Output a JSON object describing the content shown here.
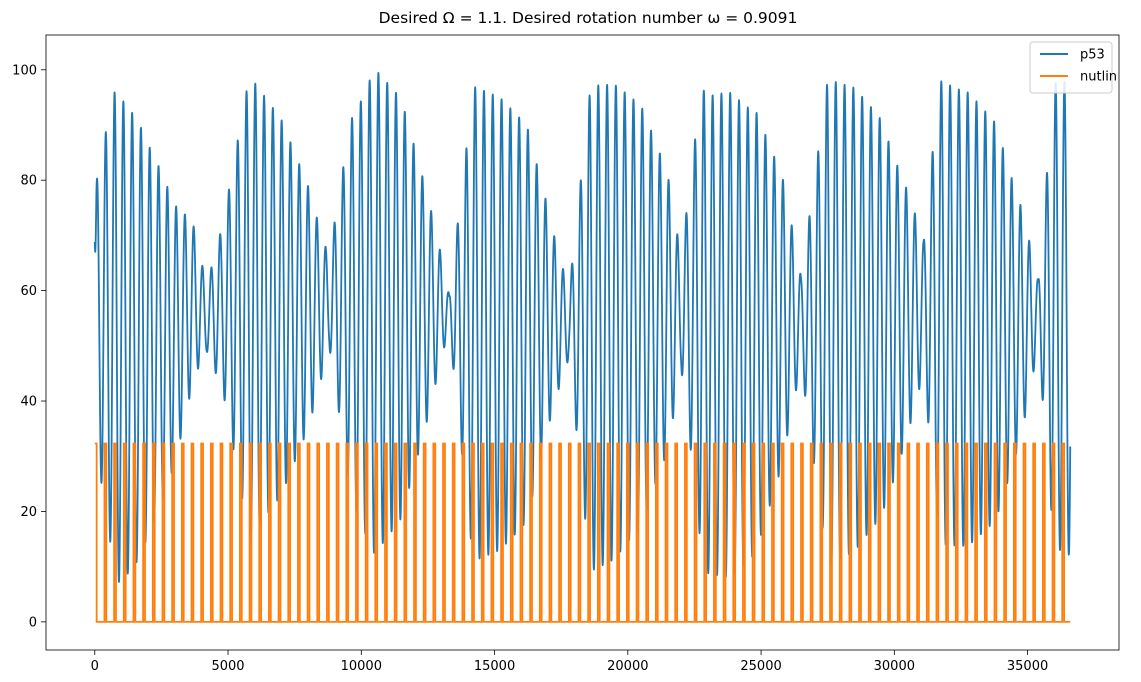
{
  "chart_data": {
    "type": "line",
    "title": "Desired Ω = 1.1. Desired rotation number ω = 0.9091",
    "xlabel": "",
    "ylabel": "",
    "xlim": [
      -1830,
      38430
    ],
    "ylim": [
      -5.1,
      106.3
    ],
    "xticks": [
      0,
      5000,
      10000,
      15000,
      20000,
      25000,
      30000,
      35000
    ],
    "yticks": [
      0,
      20,
      40,
      60,
      80,
      100
    ],
    "grid": false,
    "legend_position": "top-right",
    "series": [
      {
        "name": "p53",
        "color": "#1f77b4",
        "model": {
          "x_start": 0,
          "x_end": 36600,
          "start_value": 68.8,
          "oscillation_period": 330,
          "beat_period": 4150,
          "midline": [
            [
              0,
              55
            ],
            [
              300,
              55
            ],
            [
              1000,
              51
            ],
            [
              2000,
              51
            ],
            [
              3000,
              52
            ],
            [
              3700,
              58
            ],
            [
              4200,
              55
            ],
            [
              4800,
              57
            ],
            [
              6000,
              57
            ],
            [
              7500,
              57
            ],
            [
              8300,
              57
            ],
            [
              9000,
              58
            ],
            [
              10000,
              56
            ],
            [
              12000,
              57
            ],
            [
              13000,
              57
            ],
            [
              14000,
              54
            ],
            [
              16000,
              54
            ],
            [
              17000,
              55
            ],
            [
              18500,
              53
            ],
            [
              20000,
              55
            ],
            [
              21000,
              56
            ],
            [
              22500,
              56
            ],
            [
              23000,
              52
            ],
            [
              24500,
              52
            ],
            [
              26000,
              55
            ],
            [
              27000,
              54
            ],
            [
              29000,
              55
            ],
            [
              30000,
              55
            ],
            [
              31000,
              57
            ],
            [
              32500,
              55
            ],
            [
              34500,
              54
            ],
            [
              35500,
              56
            ],
            [
              36600,
              55
            ]
          ],
          "envelope_peaks": [
            [
              0,
              23
            ],
            [
              800,
              45
            ],
            [
              1600,
              40
            ],
            [
              2500,
              30
            ],
            [
              3500,
              17
            ],
            [
              4200,
              6
            ],
            [
              4800,
              15
            ],
            [
              5800,
              42
            ],
            [
              7000,
              34
            ],
            [
              8000,
              22
            ],
            [
              8800,
              8
            ],
            [
              9600,
              34
            ],
            [
              10500,
              44
            ],
            [
              11500,
              38
            ],
            [
              12500,
              20
            ],
            [
              13300,
              3
            ],
            [
              14200,
              43
            ],
            [
              15200,
              41
            ],
            [
              16200,
              36
            ],
            [
              17300,
              14
            ],
            [
              17800,
              6
            ],
            [
              18600,
              44
            ],
            [
              19500,
              43
            ],
            [
              20500,
              38
            ],
            [
              21500,
              25
            ],
            [
              22000,
              10
            ],
            [
              22800,
              43
            ],
            [
              23800,
              44
            ],
            [
              24800,
              40
            ],
            [
              25800,
              26
            ],
            [
              26500,
              8
            ],
            [
              27500,
              44
            ],
            [
              28500,
              42
            ],
            [
              29500,
              36
            ],
            [
              30500,
              22
            ],
            [
              31100,
              12
            ],
            [
              31700,
              42
            ],
            [
              32800,
              41
            ],
            [
              33800,
              36
            ],
            [
              34800,
              20
            ],
            [
              35400,
              6
            ],
            [
              36000,
              42
            ],
            [
              36600,
              43
            ]
          ]
        }
      },
      {
        "name": "nutlin",
        "color": "#ff7f0e",
        "pulse_height": 32.3,
        "pulse_width": 70,
        "pulse_period": 363,
        "pulse_start": 0,
        "x_end": 36600
      }
    ]
  }
}
